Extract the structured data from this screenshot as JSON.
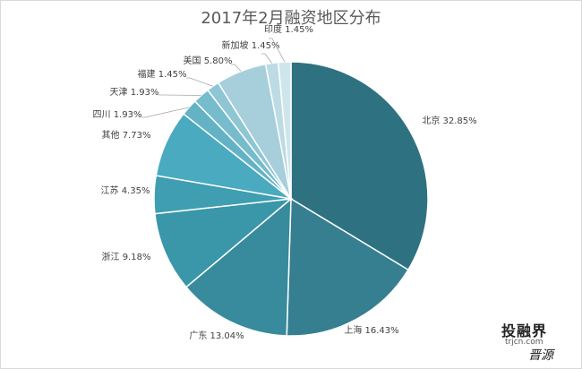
{
  "chart_data": {
    "type": "pie",
    "title": "2017年2月融资地区分布",
    "slices": [
      {
        "label": "北京",
        "value": 32.85,
        "display": "32.85%",
        "color": "#2e7281"
      },
      {
        "label": "上海",
        "value": 16.43,
        "display": "16.43%",
        "color": "#357f91"
      },
      {
        "label": "广东",
        "value": 13.04,
        "display": "13.04%",
        "color": "#378b9d"
      },
      {
        "label": "浙江",
        "value": 9.18,
        "display": "9.18%",
        "color": "#3a96a9"
      },
      {
        "label": "江苏",
        "value": 4.35,
        "display": "4.35%",
        "color": "#3f9eb1"
      },
      {
        "label": "其他",
        "value": 7.73,
        "display": "7.73%",
        "color": "#4aaac0"
      },
      {
        "label": "四川",
        "value": 1.93,
        "display": "1.93%",
        "color": "#63b2c5"
      },
      {
        "label": "天津",
        "value": 1.93,
        "display": "1.93%",
        "color": "#77bccc"
      },
      {
        "label": "福建",
        "value": 1.45,
        "display": "1.45%",
        "color": "#8ec6d4"
      },
      {
        "label": "美国",
        "value": 5.8,
        "display": "5.80%",
        "color": "#a6cfdb"
      },
      {
        "label": "新加坡",
        "value": 1.45,
        "display": "1.45%",
        "color": "#bcdbe4"
      },
      {
        "label": "印度",
        "value": 1.45,
        "display": "1.45%",
        "color": "#cfe5ec"
      }
    ]
  },
  "watermark": {
    "brand_cn": "投融界",
    "brand_en": "trjcn.com",
    "signature": "晋源"
  }
}
